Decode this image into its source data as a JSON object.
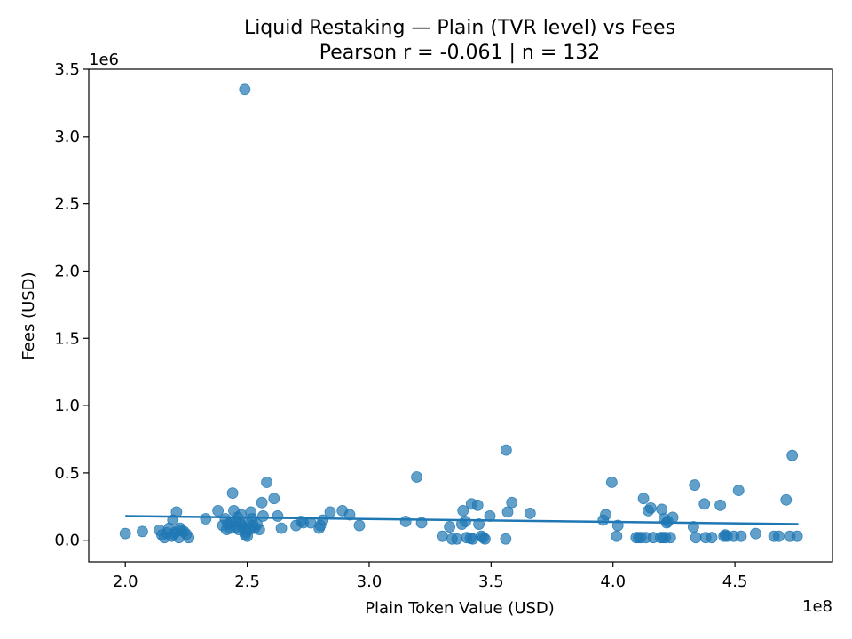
{
  "chart_data": {
    "type": "scatter",
    "title": "Liquid Restaking — Plain (TVR level) vs Fees",
    "subtitle": "Pearson r = -0.061 | n = 132",
    "xlabel": "Plain Token Value (USD)",
    "ylabel": "Fees (USD)",
    "x_offset_label": "1e8",
    "y_offset_label": "1e6",
    "xlim": [
      185000000,
      490000000
    ],
    "ylim": [
      -160000,
      3500000
    ],
    "x_ticks": [
      200000000,
      250000000,
      300000000,
      350000000,
      400000000,
      450000000
    ],
    "x_tick_labels": [
      "2.0",
      "2.5",
      "3.0",
      "3.5",
      "4.0",
      "4.5"
    ],
    "y_ticks": [
      0,
      500000,
      1000000,
      1500000,
      2000000,
      2500000,
      3000000,
      3500000
    ],
    "y_tick_labels": [
      "0.0",
      "0.5",
      "1.0",
      "1.5",
      "2.0",
      "2.5",
      "3.0",
      "3.5"
    ],
    "grid": false,
    "colors": {
      "points": "#1f77b4",
      "trend": "#1f77b4"
    },
    "trend_line": {
      "x": [
        200000000,
        476000000
      ],
      "y": [
        180000,
        120000
      ]
    },
    "points": [
      [
        200000000,
        50000
      ],
      [
        207000000,
        65000
      ],
      [
        214000000,
        75000
      ],
      [
        215000000,
        40000
      ],
      [
        216000000,
        20000
      ],
      [
        217000000,
        55000
      ],
      [
        218000000,
        90000
      ],
      [
        219000000,
        30000
      ],
      [
        219500000,
        150000
      ],
      [
        220000000,
        45000
      ],
      [
        220500000,
        60000
      ],
      [
        221000000,
        210000
      ],
      [
        222000000,
        20000
      ],
      [
        222500000,
        90000
      ],
      [
        223000000,
        75000
      ],
      [
        224000000,
        65000
      ],
      [
        225000000,
        45000
      ],
      [
        226000000,
        20000
      ],
      [
        233000000,
        160000
      ],
      [
        238000000,
        220000
      ],
      [
        240000000,
        110000
      ],
      [
        241000000,
        160000
      ],
      [
        241500000,
        80000
      ],
      [
        242000000,
        120000
      ],
      [
        243000000,
        90000
      ],
      [
        243500000,
        130000
      ],
      [
        244000000,
        350000
      ],
      [
        244500000,
        220000
      ],
      [
        245000000,
        140000
      ],
      [
        245500000,
        100000
      ],
      [
        246000000,
        170000
      ],
      [
        246500000,
        80000
      ],
      [
        247000000,
        120000
      ],
      [
        247500000,
        190000
      ],
      [
        248000000,
        110000
      ],
      [
        248500000,
        90000
      ],
      [
        249000000,
        3350000
      ],
      [
        249200000,
        40000
      ],
      [
        249500000,
        60000
      ],
      [
        250000000,
        30000
      ],
      [
        250500000,
        130000
      ],
      [
        251000000,
        80000
      ],
      [
        251500000,
        210000
      ],
      [
        252000000,
        160000
      ],
      [
        252500000,
        110000
      ],
      [
        253000000,
        90000
      ],
      [
        254000000,
        120000
      ],
      [
        255000000,
        80000
      ],
      [
        256000000,
        280000
      ],
      [
        256500000,
        180000
      ],
      [
        258000000,
        430000
      ],
      [
        261000000,
        310000
      ],
      [
        262500000,
        180000
      ],
      [
        264000000,
        90000
      ],
      [
        270000000,
        110000
      ],
      [
        272000000,
        140000
      ],
      [
        273000000,
        130000
      ],
      [
        276000000,
        130000
      ],
      [
        279500000,
        90000
      ],
      [
        280000000,
        110000
      ],
      [
        281000000,
        150000
      ],
      [
        284000000,
        210000
      ],
      [
        289000000,
        220000
      ],
      [
        292000000,
        190000
      ],
      [
        296000000,
        110000
      ],
      [
        315000000,
        140000
      ],
      [
        319500000,
        470000
      ],
      [
        321500000,
        130000
      ],
      [
        330000000,
        30000
      ],
      [
        333000000,
        100000
      ],
      [
        334000000,
        10000
      ],
      [
        336000000,
        10000
      ],
      [
        338000000,
        120000
      ],
      [
        338500000,
        220000
      ],
      [
        339500000,
        140000
      ],
      [
        340000000,
        20000
      ],
      [
        341500000,
        15000
      ],
      [
        342500000,
        10000
      ],
      [
        342000000,
        270000
      ],
      [
        344500000,
        260000
      ],
      [
        345000000,
        120000
      ],
      [
        346000000,
        30000
      ],
      [
        346800000,
        20000
      ],
      [
        347500000,
        10000
      ],
      [
        349500000,
        180000
      ],
      [
        356000000,
        10000
      ],
      [
        356200000,
        670000
      ],
      [
        356800000,
        210000
      ],
      [
        358500000,
        280000
      ],
      [
        366000000,
        200000
      ],
      [
        396000000,
        150000
      ],
      [
        397000000,
        190000
      ],
      [
        399500000,
        430000
      ],
      [
        401500000,
        30000
      ],
      [
        402000000,
        110000
      ],
      [
        409500000,
        20000
      ],
      [
        410500000,
        20000
      ],
      [
        411500000,
        20000
      ],
      [
        412500000,
        310000
      ],
      [
        413500000,
        20000
      ],
      [
        414500000,
        220000
      ],
      [
        415500000,
        240000
      ],
      [
        416500000,
        20000
      ],
      [
        419500000,
        20000
      ],
      [
        420000000,
        230000
      ],
      [
        420500000,
        20000
      ],
      [
        421000000,
        160000
      ],
      [
        421500000,
        20000
      ],
      [
        422000000,
        130000
      ],
      [
        422500000,
        140000
      ],
      [
        423500000,
        20000
      ],
      [
        424500000,
        170000
      ],
      [
        433000000,
        100000
      ],
      [
        433500000,
        410000
      ],
      [
        434000000,
        20000
      ],
      [
        437500000,
        270000
      ],
      [
        438000000,
        20000
      ],
      [
        440500000,
        20000
      ],
      [
        444000000,
        260000
      ],
      [
        445500000,
        30000
      ],
      [
        446000000,
        40000
      ],
      [
        446800000,
        30000
      ],
      [
        449500000,
        30000
      ],
      [
        451500000,
        370000
      ],
      [
        452500000,
        30000
      ],
      [
        458500000,
        50000
      ],
      [
        466000000,
        30000
      ],
      [
        468000000,
        30000
      ],
      [
        471000000,
        300000
      ],
      [
        472500000,
        30000
      ],
      [
        473500000,
        630000
      ],
      [
        475500000,
        30000
      ]
    ]
  }
}
